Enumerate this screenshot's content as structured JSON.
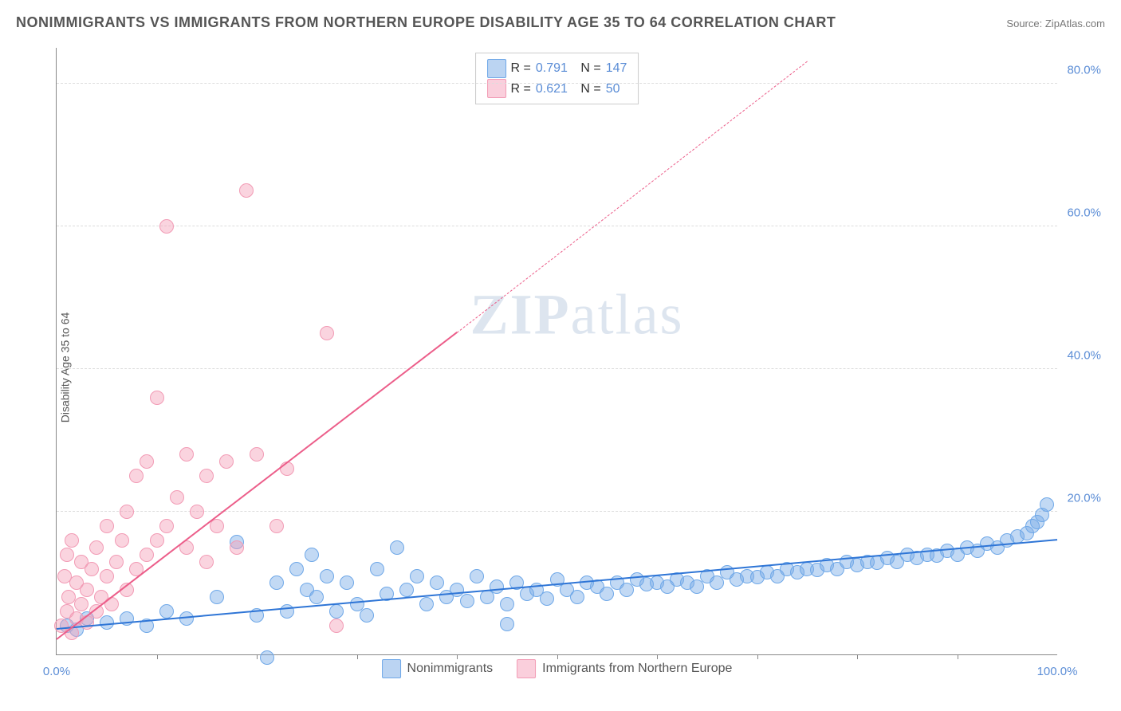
{
  "title": "NONIMMIGRANTS VS IMMIGRANTS FROM NORTHERN EUROPE DISABILITY AGE 35 TO 64 CORRELATION CHART",
  "source_label": "Source:",
  "source_name": "ZipAtlas.com",
  "ylabel": "Disability Age 35 to 64",
  "watermark_a": "ZIP",
  "watermark_b": "atlas",
  "chart": {
    "type": "scatter",
    "background_color": "#ffffff",
    "grid_color": "#dddddd",
    "axis_color": "#888888",
    "tick_color": "#5b8dd6",
    "xlim": [
      0,
      100
    ],
    "ylim": [
      0,
      85
    ],
    "xticks": [
      0,
      100
    ],
    "xtick_labels": [
      "0.0%",
      "100.0%"
    ],
    "xtick_minor": [
      10,
      20,
      30,
      40,
      50,
      60,
      70,
      80,
      90
    ],
    "yticks": [
      20,
      40,
      60,
      80
    ],
    "ytick_labels": [
      "20.0%",
      "40.0%",
      "60.0%",
      "80.0%"
    ],
    "tick_fontsize": 15,
    "label_fontsize": 14,
    "point_radius": 9,
    "point_border_width": 1.5
  },
  "series": [
    {
      "name": "Nonimmigrants",
      "color_fill": "rgba(120,170,230,0.45)",
      "color_border": "#6fa8e8",
      "trend_color": "#2e75d6",
      "R": "0.791",
      "N": "147",
      "trend": {
        "x1": 0,
        "y1": 3.5,
        "x2": 100,
        "y2": 16
      },
      "points": [
        [
          1,
          4
        ],
        [
          2,
          3.5
        ],
        [
          3,
          5
        ],
        [
          5,
          4.5
        ],
        [
          7,
          5
        ],
        [
          9,
          4
        ],
        [
          11,
          6
        ],
        [
          13,
          5
        ],
        [
          16,
          8
        ],
        [
          18,
          15.8
        ],
        [
          20,
          5.5
        ],
        [
          21,
          -0.5
        ],
        [
          22,
          10
        ],
        [
          23,
          6
        ],
        [
          24,
          12
        ],
        [
          25,
          9
        ],
        [
          25.5,
          14
        ],
        [
          26,
          8
        ],
        [
          27,
          11
        ],
        [
          28,
          6
        ],
        [
          29,
          10
        ],
        [
          30,
          7
        ],
        [
          31,
          5.5
        ],
        [
          32,
          12
        ],
        [
          33,
          8.5
        ],
        [
          34,
          15
        ],
        [
          35,
          9
        ],
        [
          36,
          11
        ],
        [
          37,
          7
        ],
        [
          38,
          10
        ],
        [
          39,
          8
        ],
        [
          40,
          9
        ],
        [
          41,
          7.5
        ],
        [
          42,
          11
        ],
        [
          43,
          8
        ],
        [
          44,
          9.5
        ],
        [
          45,
          7
        ],
        [
          45,
          4.2
        ],
        [
          46,
          10
        ],
        [
          47,
          8.5
        ],
        [
          48,
          9
        ],
        [
          49,
          7.8
        ],
        [
          50,
          10.5
        ],
        [
          51,
          9
        ],
        [
          52,
          8
        ],
        [
          53,
          10
        ],
        [
          54,
          9.5
        ],
        [
          55,
          8.5
        ],
        [
          56,
          10
        ],
        [
          57,
          9
        ],
        [
          58,
          10.5
        ],
        [
          59,
          9.8
        ],
        [
          60,
          10
        ],
        [
          61,
          9.5
        ],
        [
          62,
          10.5
        ],
        [
          63,
          10
        ],
        [
          64,
          9.5
        ],
        [
          65,
          11
        ],
        [
          66,
          10
        ],
        [
          67,
          11.5
        ],
        [
          68,
          10.5
        ],
        [
          69,
          11
        ],
        [
          70,
          10.8
        ],
        [
          71,
          11.5
        ],
        [
          72,
          11
        ],
        [
          73,
          12
        ],
        [
          74,
          11.5
        ],
        [
          75,
          12
        ],
        [
          76,
          11.8
        ],
        [
          77,
          12.5
        ],
        [
          78,
          12
        ],
        [
          79,
          13
        ],
        [
          80,
          12.5
        ],
        [
          81,
          13
        ],
        [
          82,
          12.8
        ],
        [
          83,
          13.5
        ],
        [
          84,
          13
        ],
        [
          85,
          14
        ],
        [
          86,
          13.5
        ],
        [
          87,
          14
        ],
        [
          88,
          13.8
        ],
        [
          89,
          14.5
        ],
        [
          90,
          14
        ],
        [
          91,
          15
        ],
        [
          92,
          14.5
        ],
        [
          93,
          15.5
        ],
        [
          94,
          15
        ],
        [
          95,
          16
        ],
        [
          96,
          16.5
        ],
        [
          97,
          17
        ],
        [
          97.5,
          18
        ],
        [
          98,
          18.5
        ],
        [
          98.5,
          19.5
        ],
        [
          99,
          21
        ]
      ]
    },
    {
      "name": "Immigrants from Northern Europe",
      "color_fill": "rgba(245,160,185,0.45)",
      "color_border": "#f29bb5",
      "trend_color": "#ec5e8a",
      "R": "0.621",
      "N": "50",
      "trend": {
        "x1": 0,
        "y1": 2,
        "x2": 40,
        "y2": 45
      },
      "trend_dash": {
        "x1": 40,
        "y1": 45,
        "x2": 75,
        "y2": 83
      },
      "points": [
        [
          0.5,
          4
        ],
        [
          0.8,
          11
        ],
        [
          1,
          6
        ],
        [
          1,
          14
        ],
        [
          1.2,
          8
        ],
        [
          1.5,
          3
        ],
        [
          1.5,
          16
        ],
        [
          2,
          5
        ],
        [
          2,
          10
        ],
        [
          2.5,
          7
        ],
        [
          2.5,
          13
        ],
        [
          3,
          4.5
        ],
        [
          3,
          9
        ],
        [
          3.5,
          12
        ],
        [
          4,
          6
        ],
        [
          4,
          15
        ],
        [
          4.5,
          8
        ],
        [
          5,
          11
        ],
        [
          5,
          18
        ],
        [
          5.5,
          7
        ],
        [
          6,
          13
        ],
        [
          6.5,
          16
        ],
        [
          7,
          9
        ],
        [
          7,
          20
        ],
        [
          8,
          12
        ],
        [
          8,
          25
        ],
        [
          9,
          14
        ],
        [
          9,
          27
        ],
        [
          10,
          16
        ],
        [
          10,
          36
        ],
        [
          11,
          18
        ],
        [
          11,
          60
        ],
        [
          12,
          22
        ],
        [
          13,
          15
        ],
        [
          13,
          28
        ],
        [
          14,
          20
        ],
        [
          15,
          13
        ],
        [
          15,
          25
        ],
        [
          16,
          18
        ],
        [
          17,
          27
        ],
        [
          18,
          15
        ],
        [
          19,
          65
        ],
        [
          20,
          28
        ],
        [
          22,
          18
        ],
        [
          23,
          26
        ],
        [
          27,
          45
        ],
        [
          28,
          4
        ]
      ]
    }
  ],
  "legend": {
    "R_label": "R =",
    "N_label": "N =",
    "swatch_border_blue": "#6fa8e8",
    "swatch_fill_blue": "rgba(120,170,230,0.5)",
    "swatch_border_pink": "#f29bb5",
    "swatch_fill_pink": "rgba(245,160,185,0.5)"
  }
}
